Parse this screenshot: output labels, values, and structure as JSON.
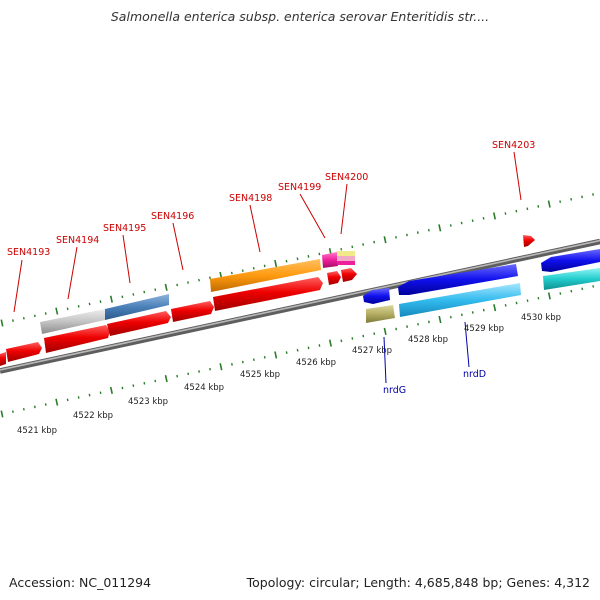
{
  "title": "Salmonella enterica subsp. enterica serovar Enteritidis str....",
  "footer": {
    "accession": "Accession: NC_011294",
    "topology": "Topology: circular; Length: 4,685,848 bp; Genes: 4,312"
  },
  "colors": {
    "backbone": "#888888",
    "tick": "#2a7d2a",
    "label_red": "#cc0000",
    "label_blue": "#0000aa"
  },
  "scale": {
    "unit": "kbp",
    "ticks": [
      "4521 kbp",
      "4522 kbp",
      "4523 kbp",
      "4524 kbp",
      "4525 kbp",
      "4526 kbp",
      "4527 kbp",
      "4528 kbp",
      "4529 kbp",
      "4530 kbp"
    ]
  },
  "gene_labels": [
    {
      "name": "SEN4193",
      "color": "#cc0000"
    },
    {
      "name": "SEN4194",
      "color": "#cc0000"
    },
    {
      "name": "SEN4195",
      "color": "#cc0000"
    },
    {
      "name": "SEN4196",
      "color": "#cc0000"
    },
    {
      "name": "SEN4198",
      "color": "#cc0000"
    },
    {
      "name": "SEN4199",
      "color": "#cc0000"
    },
    {
      "name": "SEN4200",
      "color": "#cc0000"
    },
    {
      "name": "SEN4203",
      "color": "#cc0000"
    },
    {
      "name": "nrdG",
      "color": "#0000aa"
    },
    {
      "name": "nrdD",
      "color": "#0000aa"
    }
  ]
}
